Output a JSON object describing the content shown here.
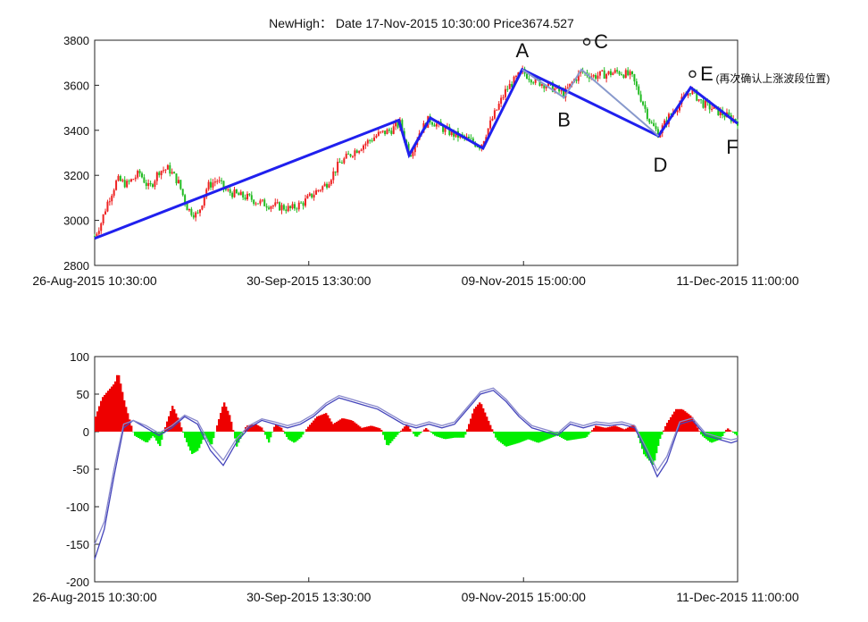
{
  "chart_data": [
    {
      "type": "line",
      "title": "NewHigh： Date 17-Nov-2015 10:30:00 Price3674.527",
      "x_ticks": [
        "26-Aug-2015 10:30:00",
        "30-Sep-2015 13:30:00",
        "09-Nov-2015 15:00:00",
        "11-Dec-2015 11:00:00"
      ],
      "y_ticks": [
        2800,
        3000,
        3200,
        3400,
        3600,
        3800
      ],
      "ylim": [
        2800,
        3800
      ],
      "series": [
        {
          "color": "#2020ee",
          "points": [
            {
              "x": 0,
              "y": 2920
            },
            {
              "x": 0.473,
              "y": 3445
            },
            {
              "x": 0.489,
              "y": 3290
            },
            {
              "x": 0.522,
              "y": 3455
            },
            {
              "x": 0.604,
              "y": 3320
            },
            {
              "x": 0.665,
              "y": 3670
            },
            {
              "x": 0.877,
              "y": 3375
            },
            {
              "x": 0.927,
              "y": 3590
            },
            {
              "x": 1.0,
              "y": 3430
            }
          ]
        },
        {
          "color": "#8899cc",
          "points": [
            {
              "x": 0.665,
              "y": 3670
            },
            {
              "x": 0.73,
              "y": 3545
            },
            {
              "x": 0.757,
              "y": 3670
            },
            {
              "x": 0.877,
              "y": 3375
            }
          ]
        }
      ],
      "annotations": [
        {
          "label": "A",
          "x": 0.665,
          "y": 3670
        },
        {
          "label": "B",
          "x": 0.73,
          "y": 3545
        },
        {
          "label": "C",
          "x": 0.757,
          "y": 3670
        },
        {
          "label": "D",
          "x": 0.877,
          "y": 3375
        },
        {
          "label": "E",
          "x": 0.927,
          "y": 3590,
          "note": "(再次确认上涨波段位置)"
        },
        {
          "label": "F",
          "x": 1.0,
          "y": 3430
        }
      ],
      "candles": {
        "up_color": "#ee2222",
        "down_color": "#22bb22",
        "path": [
          [
            0,
            2930
          ],
          [
            0.01,
            2990
          ],
          [
            0.02,
            3080
          ],
          [
            0.035,
            3180
          ],
          [
            0.05,
            3160
          ],
          [
            0.07,
            3210
          ],
          [
            0.085,
            3140
          ],
          [
            0.1,
            3220
          ],
          [
            0.115,
            3230
          ],
          [
            0.13,
            3170
          ],
          [
            0.145,
            3050
          ],
          [
            0.16,
            3020
          ],
          [
            0.175,
            3150
          ],
          [
            0.19,
            3180
          ],
          [
            0.205,
            3130
          ],
          [
            0.225,
            3110
          ],
          [
            0.24,
            3100
          ],
          [
            0.255,
            3080
          ],
          [
            0.27,
            3070
          ],
          [
            0.29,
            3060
          ],
          [
            0.305,
            3050
          ],
          [
            0.325,
            3080
          ],
          [
            0.345,
            3130
          ],
          [
            0.36,
            3160
          ],
          [
            0.38,
            3250
          ],
          [
            0.4,
            3300
          ],
          [
            0.42,
            3340
          ],
          [
            0.44,
            3380
          ],
          [
            0.46,
            3400
          ],
          [
            0.475,
            3430
          ],
          [
            0.49,
            3290
          ],
          [
            0.505,
            3390
          ],
          [
            0.52,
            3450
          ],
          [
            0.54,
            3410
          ],
          [
            0.56,
            3380
          ],
          [
            0.58,
            3360
          ],
          [
            0.6,
            3330
          ],
          [
            0.62,
            3460
          ],
          [
            0.64,
            3580
          ],
          [
            0.665,
            3660
          ],
          [
            0.685,
            3620
          ],
          [
            0.705,
            3600
          ],
          [
            0.73,
            3560
          ],
          [
            0.745,
            3620
          ],
          [
            0.757,
            3660
          ],
          [
            0.775,
            3640
          ],
          [
            0.795,
            3650
          ],
          [
            0.815,
            3660
          ],
          [
            0.835,
            3640
          ],
          [
            0.85,
            3540
          ],
          [
            0.865,
            3430
          ],
          [
            0.877,
            3385
          ],
          [
            0.893,
            3460
          ],
          [
            0.91,
            3520
          ],
          [
            0.927,
            3580
          ],
          [
            0.945,
            3520
          ],
          [
            0.965,
            3490
          ],
          [
            0.985,
            3460
          ],
          [
            1.0,
            3440
          ]
        ]
      }
    },
    {
      "type": "area",
      "x_ticks": [
        "26-Aug-2015 10:30:00",
        "30-Sep-2015 13:30:00",
        "09-Nov-2015 15:00:00",
        "11-Dec-2015 11:00:00"
      ],
      "y_ticks": [
        -200,
        -150,
        -100,
        -50,
        0,
        50,
        100
      ],
      "ylim": [
        -200,
        100
      ],
      "histogram": {
        "positive_color": "#ee0000",
        "negative_color": "#00ee00",
        "points": [
          [
            0,
            20
          ],
          [
            0.01,
            45
          ],
          [
            0.02,
            55
          ],
          [
            0.03,
            65
          ],
          [
            0.035,
            80
          ],
          [
            0.045,
            40
          ],
          [
            0.055,
            10
          ],
          [
            0.06,
            -5
          ],
          [
            0.07,
            -10
          ],
          [
            0.08,
            -15
          ],
          [
            0.09,
            -5
          ],
          [
            0.1,
            -20
          ],
          [
            0.11,
            10
          ],
          [
            0.12,
            35
          ],
          [
            0.13,
            15
          ],
          [
            0.14,
            -10
          ],
          [
            0.15,
            -30
          ],
          [
            0.16,
            -25
          ],
          [
            0.17,
            -5
          ],
          [
            0.18,
            -20
          ],
          [
            0.19,
            10
          ],
          [
            0.2,
            40
          ],
          [
            0.21,
            20
          ],
          [
            0.22,
            -20
          ],
          [
            0.235,
            8
          ],
          [
            0.25,
            10
          ],
          [
            0.26,
            5
          ],
          [
            0.27,
            -15
          ],
          [
            0.28,
            10
          ],
          [
            0.29,
            5
          ],
          [
            0.3,
            -10
          ],
          [
            0.31,
            -15
          ],
          [
            0.32,
            -8
          ],
          [
            0.33,
            5
          ],
          [
            0.345,
            20
          ],
          [
            0.36,
            25
          ],
          [
            0.37,
            10
          ],
          [
            0.385,
            18
          ],
          [
            0.4,
            15
          ],
          [
            0.415,
            5
          ],
          [
            0.43,
            8
          ],
          [
            0.445,
            4
          ],
          [
            0.455,
            -20
          ],
          [
            0.47,
            -5
          ],
          [
            0.485,
            10
          ],
          [
            0.5,
            -8
          ],
          [
            0.515,
            5
          ],
          [
            0.53,
            -6
          ],
          [
            0.545,
            -10
          ],
          [
            0.56,
            -8
          ],
          [
            0.575,
            -8
          ],
          [
            0.59,
            30
          ],
          [
            0.6,
            40
          ],
          [
            0.615,
            10
          ],
          [
            0.625,
            -10
          ],
          [
            0.64,
            -20
          ],
          [
            0.66,
            -15
          ],
          [
            0.675,
            -10
          ],
          [
            0.69,
            -15
          ],
          [
            0.705,
            -10
          ],
          [
            0.72,
            -5
          ],
          [
            0.735,
            -12
          ],
          [
            0.75,
            -10
          ],
          [
            0.765,
            -8
          ],
          [
            0.78,
            8
          ],
          [
            0.795,
            5
          ],
          [
            0.81,
            8
          ],
          [
            0.825,
            3
          ],
          [
            0.84,
            10
          ],
          [
            0.855,
            -30
          ],
          [
            0.87,
            -45
          ],
          [
            0.88,
            -10
          ],
          [
            0.89,
            10
          ],
          [
            0.905,
            30
          ],
          [
            0.915,
            30
          ],
          [
            0.93,
            20
          ],
          [
            0.945,
            -5
          ],
          [
            0.96,
            -15
          ],
          [
            0.975,
            -10
          ],
          [
            0.985,
            5
          ],
          [
            1.0,
            -5
          ]
        ]
      },
      "series": [
        {
          "color": "#4444bb",
          "points": [
            [
              0,
              -170
            ],
            [
              0.015,
              -130
            ],
            [
              0.03,
              -60
            ],
            [
              0.045,
              5
            ],
            [
              0.06,
              15
            ],
            [
              0.08,
              5
            ],
            [
              0.1,
              -5
            ],
            [
              0.12,
              5
            ],
            [
              0.14,
              20
            ],
            [
              0.16,
              10
            ],
            [
              0.18,
              -25
            ],
            [
              0.2,
              -45
            ],
            [
              0.22,
              -15
            ],
            [
              0.24,
              5
            ],
            [
              0.26,
              15
            ],
            [
              0.28,
              10
            ],
            [
              0.3,
              5
            ],
            [
              0.32,
              10
            ],
            [
              0.34,
              20
            ],
            [
              0.36,
              35
            ],
            [
              0.38,
              45
            ],
            [
              0.4,
              40
            ],
            [
              0.42,
              35
            ],
            [
              0.44,
              30
            ],
            [
              0.46,
              20
            ],
            [
              0.48,
              10
            ],
            [
              0.5,
              5
            ],
            [
              0.52,
              10
            ],
            [
              0.54,
              5
            ],
            [
              0.56,
              10
            ],
            [
              0.58,
              30
            ],
            [
              0.6,
              50
            ],
            [
              0.62,
              55
            ],
            [
              0.64,
              40
            ],
            [
              0.66,
              20
            ],
            [
              0.68,
              5
            ],
            [
              0.7,
              0
            ],
            [
              0.72,
              -5
            ],
            [
              0.74,
              10
            ],
            [
              0.76,
              5
            ],
            [
              0.78,
              10
            ],
            [
              0.8,
              8
            ],
            [
              0.82,
              10
            ],
            [
              0.84,
              5
            ],
            [
              0.86,
              -30
            ],
            [
              0.875,
              -60
            ],
            [
              0.89,
              -40
            ],
            [
              0.91,
              10
            ],
            [
              0.93,
              15
            ],
            [
              0.95,
              -5
            ],
            [
              0.97,
              -10
            ],
            [
              0.99,
              -15
            ],
            [
              1.0,
              -12
            ]
          ]
        },
        {
          "color": "#8888cc",
          "points": [
            [
              0,
              -150
            ],
            [
              0.015,
              -120
            ],
            [
              0.03,
              -50
            ],
            [
              0.045,
              10
            ],
            [
              0.06,
              15
            ],
            [
              0.08,
              8
            ],
            [
              0.1,
              -2
            ],
            [
              0.12,
              8
            ],
            [
              0.14,
              22
            ],
            [
              0.16,
              14
            ],
            [
              0.18,
              -18
            ],
            [
              0.2,
              -38
            ],
            [
              0.22,
              -10
            ],
            [
              0.24,
              8
            ],
            [
              0.26,
              17
            ],
            [
              0.28,
              13
            ],
            [
              0.3,
              8
            ],
            [
              0.32,
              13
            ],
            [
              0.34,
              23
            ],
            [
              0.36,
              38
            ],
            [
              0.38,
              48
            ],
            [
              0.4,
              43
            ],
            [
              0.42,
              38
            ],
            [
              0.44,
              33
            ],
            [
              0.46,
              23
            ],
            [
              0.48,
              13
            ],
            [
              0.5,
              8
            ],
            [
              0.52,
              13
            ],
            [
              0.54,
              8
            ],
            [
              0.56,
              13
            ],
            [
              0.58,
              33
            ],
            [
              0.6,
              53
            ],
            [
              0.62,
              58
            ],
            [
              0.64,
              43
            ],
            [
              0.66,
              23
            ],
            [
              0.68,
              8
            ],
            [
              0.7,
              3
            ],
            [
              0.72,
              -2
            ],
            [
              0.74,
              13
            ],
            [
              0.76,
              8
            ],
            [
              0.78,
              13
            ],
            [
              0.8,
              11
            ],
            [
              0.82,
              13
            ],
            [
              0.84,
              8
            ],
            [
              0.86,
              -25
            ],
            [
              0.875,
              -52
            ],
            [
              0.89,
              -33
            ],
            [
              0.91,
              13
            ],
            [
              0.93,
              18
            ],
            [
              0.95,
              -2
            ],
            [
              0.97,
              -7
            ],
            [
              0.99,
              -11
            ],
            [
              1.0,
              -9
            ]
          ]
        }
      ]
    }
  ]
}
